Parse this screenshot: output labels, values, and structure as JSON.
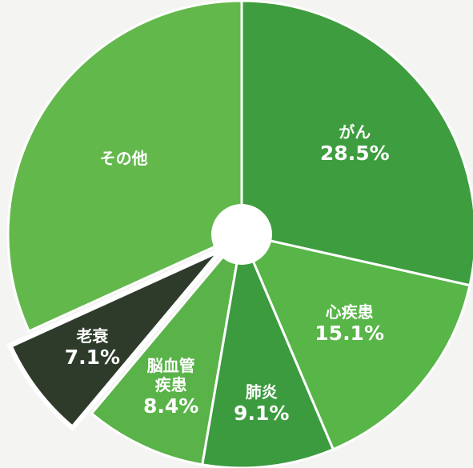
{
  "chart_data": {
    "type": "pie",
    "categories": [
      "がん",
      "心疾患",
      "肺炎",
      "脳血管疾患",
      "老衰",
      "その他"
    ],
    "values": [
      28.5,
      15.1,
      9.1,
      8.4,
      7.1,
      31.8
    ],
    "value_labels": [
      "28.5%",
      "15.1%",
      "9.1%",
      "8.4%",
      "7.1%",
      null
    ],
    "colors": [
      "#3e9d3e",
      "#58b547",
      "#3c9b3f",
      "#59b348",
      "#2e3b2b",
      "#63b84c"
    ],
    "exploded": [
      false,
      false,
      false,
      false,
      true,
      false
    ]
  }
}
